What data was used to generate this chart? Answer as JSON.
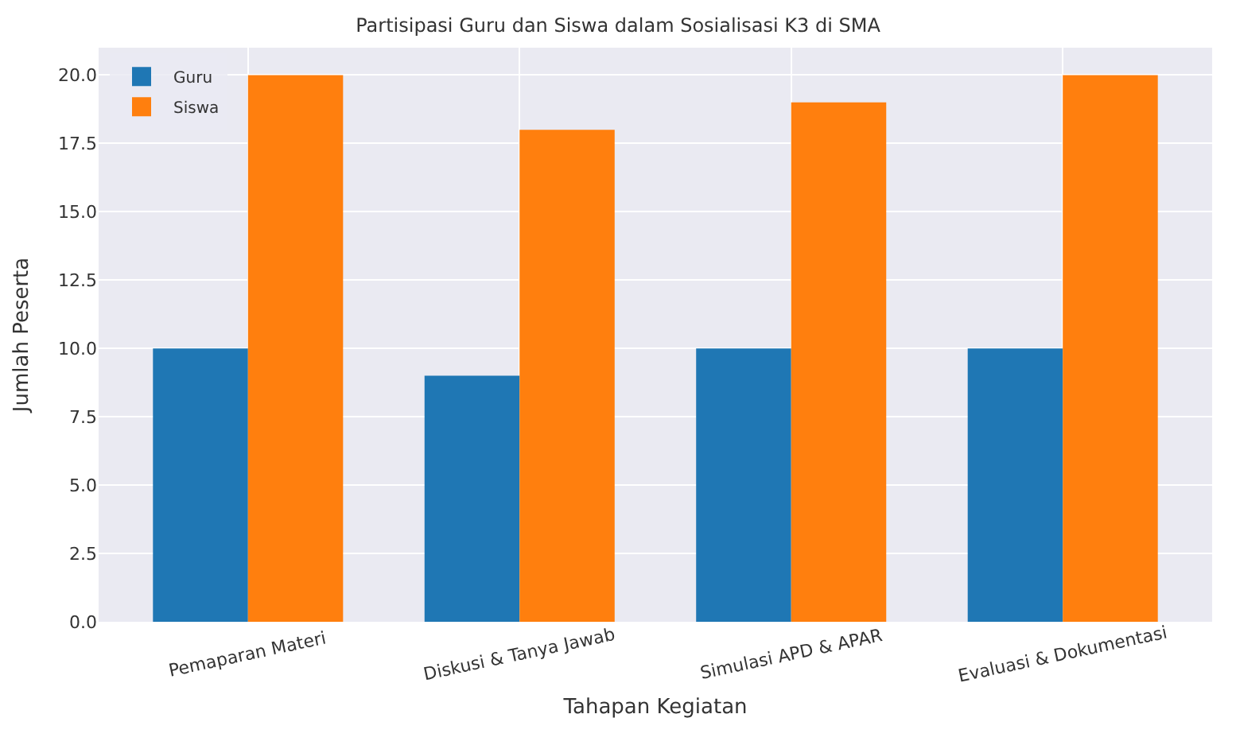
{
  "chart_data": {
    "type": "bar",
    "title": "Partisipasi Guru dan Siswa dalam Sosialisasi K3 di SMA",
    "xlabel": "Tahapan Kegiatan",
    "ylabel": "Jumlah Peserta",
    "categories": [
      "Pemaparan Materi",
      "Diskusi & Tanya Jawab",
      "Simulasi APD & APAR",
      "Evaluasi & Dokumentasi"
    ],
    "series": [
      {
        "name": "Guru",
        "color": "#1f77b4",
        "values": [
          10,
          9,
          10,
          10
        ]
      },
      {
        "name": "Siswa",
        "color": "#ff7f0e",
        "values": [
          20,
          18,
          19,
          20
        ]
      }
    ],
    "ylim": [
      0,
      21
    ],
    "yticks": [
      {
        "value": 0,
        "label": "0.0"
      },
      {
        "value": 2.5,
        "label": "2.5"
      },
      {
        "value": 5,
        "label": "5.0"
      },
      {
        "value": 7.5,
        "label": "7.5"
      },
      {
        "value": 10,
        "label": "10.0"
      },
      {
        "value": 12.5,
        "label": "12.5"
      },
      {
        "value": 15,
        "label": "15.0"
      },
      {
        "value": 17.5,
        "label": "17.5"
      },
      {
        "value": 20,
        "label": "20.0"
      }
    ],
    "grid": true,
    "legend": "top left"
  }
}
